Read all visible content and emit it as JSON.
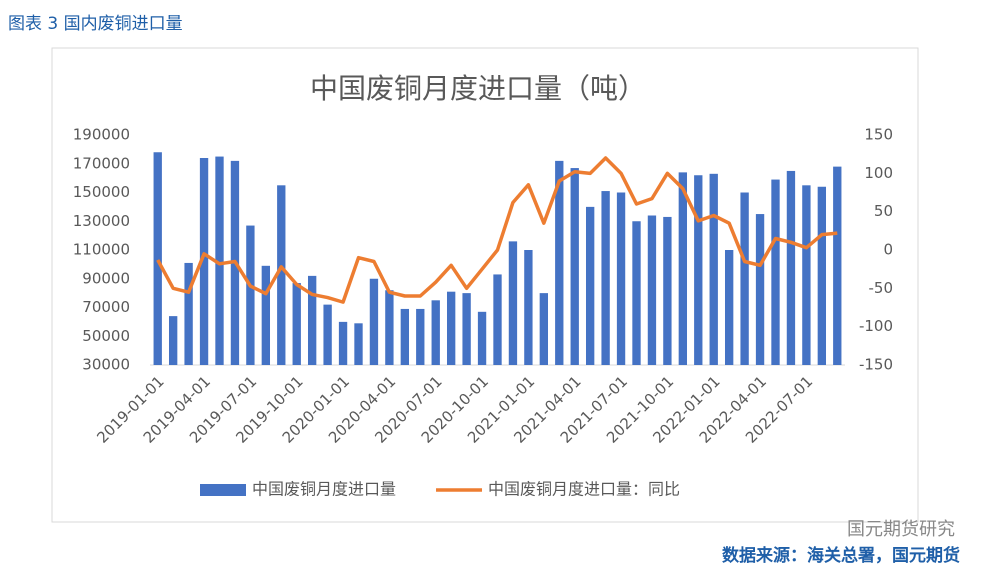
{
  "header": {
    "title": "图表 3 国内废铜进口量"
  },
  "source": "数据来源：海关总署，国元期货",
  "watermark": "国元期货研究",
  "chart_data": {
    "type": "bar",
    "title": "中国废铜月度进口量（吨）",
    "categories": [
      "2019-01-01",
      null,
      null,
      "2019-04-01",
      null,
      null,
      "2019-07-01",
      null,
      null,
      "2019-10-01",
      null,
      null,
      "2020-01-01",
      null,
      null,
      "2020-04-01",
      null,
      null,
      "2020-07-01",
      null,
      null,
      "2020-10-01",
      null,
      null,
      "2021-01-01",
      null,
      null,
      "2021-04-01",
      null,
      null,
      "2021-07-01",
      null,
      null,
      "2021-10-01",
      null,
      null,
      "2022-01-01",
      null,
      null,
      "2022-04-01",
      null,
      null,
      "2022-07-01",
      null,
      null
    ],
    "series": [
      {
        "name": "中国废铜月度进口量",
        "type": "bar",
        "color": "#4472c4",
        "values": [
          178000,
          64000,
          101000,
          174000,
          175000,
          172000,
          127000,
          99000,
          155000,
          87000,
          92000,
          72000,
          60000,
          59000,
          90000,
          82000,
          69000,
          69000,
          75000,
          81000,
          80000,
          67000,
          93000,
          116000,
          110000,
          80000,
          172000,
          167000,
          140000,
          151000,
          150000,
          130000,
          134000,
          133000,
          164000,
          162000,
          163000,
          110000,
          150000,
          135000,
          159000,
          165000,
          155000,
          154000,
          168000
        ]
      },
      {
        "name": "中国废铜月度进口量：同比",
        "type": "line",
        "axis": "y2",
        "color": "#ed7d31",
        "values": [
          -13,
          -50,
          -55,
          -5,
          -18,
          -15,
          -47,
          -57,
          -22,
          -45,
          -58,
          -62,
          -68,
          -10,
          -15,
          -55,
          -60,
          -60,
          -42,
          -20,
          -50,
          -25,
          0,
          62,
          85,
          35,
          90,
          102,
          100,
          120,
          100,
          60,
          67,
          100,
          80,
          38,
          45,
          35,
          -15,
          -20,
          15,
          10,
          3,
          20,
          22
        ]
      }
    ],
    "ylim": [
      30000,
      190000
    ],
    "yticks": [
      30000,
      50000,
      70000,
      90000,
      110000,
      130000,
      150000,
      170000,
      190000
    ],
    "y2lim": [
      -150,
      150
    ],
    "y2ticks": [
      -150,
      -100,
      -50,
      0,
      50,
      100,
      150
    ],
    "grid": false,
    "legend": "bottom"
  }
}
